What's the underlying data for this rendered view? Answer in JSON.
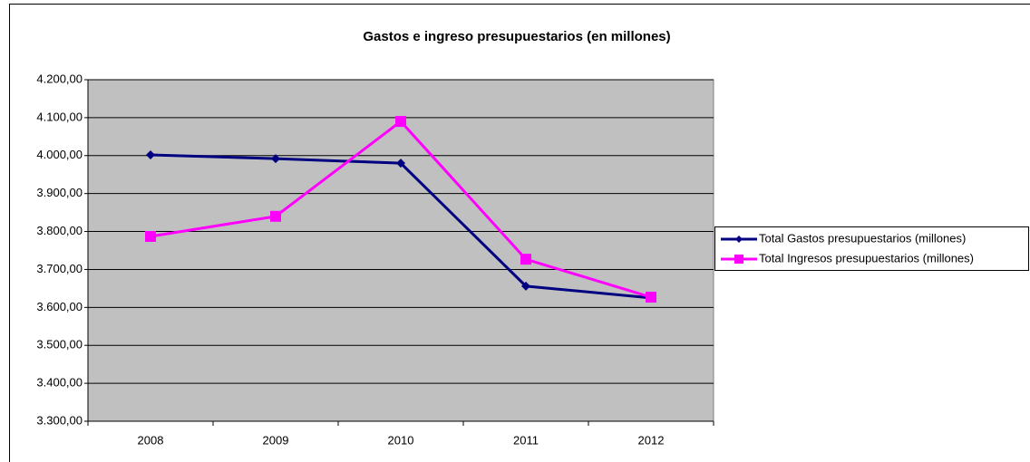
{
  "chart_data": {
    "type": "line",
    "title": "Gastos e ingreso presupuestarios (en millones)",
    "categories": [
      "2008",
      "2009",
      "2010",
      "2011",
      "2012"
    ],
    "series": [
      {
        "name": "Total Gastos presupuestarios (millones)",
        "color": "#000080",
        "marker": "diamond",
        "values": [
          4002,
          3992,
          3980,
          3656,
          3625
        ]
      },
      {
        "name": "Total Ingresos presupuestarios (millones)",
        "color": "#ff00ff",
        "marker": "square",
        "values": [
          3787,
          3840,
          4090,
          3727,
          3627
        ]
      }
    ],
    "ylim": [
      3300,
      4200
    ],
    "yticks": [
      {
        "value": 3300,
        "label": "3.300,00"
      },
      {
        "value": 3400,
        "label": "3.400,00"
      },
      {
        "value": 3500,
        "label": "3.500,00"
      },
      {
        "value": 3600,
        "label": "3.600,00"
      },
      {
        "value": 3700,
        "label": "3.700,00"
      },
      {
        "value": 3800,
        "label": "3.800,00"
      },
      {
        "value": 3900,
        "label": "3.900,00"
      },
      {
        "value": 4000,
        "label": "4.000,00"
      },
      {
        "value": 4100,
        "label": "4.100,00"
      },
      {
        "value": 4200,
        "label": "4.200,00"
      }
    ],
    "grid": true,
    "legend": "right"
  }
}
